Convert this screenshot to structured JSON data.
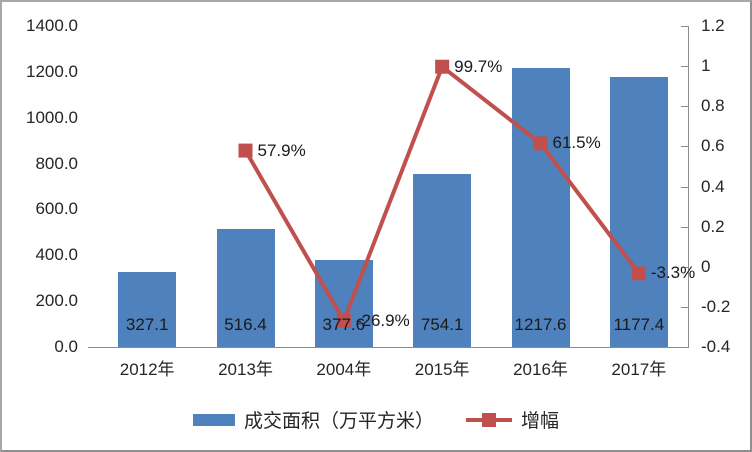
{
  "chart_data": {
    "type": "combo-bar-line",
    "categories": [
      "2012年",
      "2013年",
      "2004年",
      "2015年",
      "2016年",
      "2017年"
    ],
    "series": [
      {
        "name": "成交面积（万平方米）",
        "type": "bar",
        "axis": "left",
        "values": [
          327.1,
          516.4,
          377.6,
          754.1,
          1217.6,
          1177.4
        ],
        "data_labels": [
          "327.1",
          "516.4",
          "377.6",
          "754.1",
          "1217.6",
          "1177.4"
        ]
      },
      {
        "name": "增幅",
        "type": "line",
        "axis": "right",
        "values": [
          null,
          0.579,
          -0.269,
          0.997,
          0.615,
          -0.033
        ],
        "data_labels": [
          null,
          "57.9%",
          "-26.9%",
          "99.7%",
          "61.5%",
          "-3.3%"
        ]
      }
    ],
    "left_axis": {
      "min": 0,
      "max": 1400,
      "step": 200,
      "tick_labels_top_to_bottom": [
        "1400.0",
        "1200.0",
        "1000.0",
        "800.0",
        "600.0",
        "400.0",
        "200.0",
        "0.0"
      ]
    },
    "right_axis": {
      "min": -0.4,
      "max": 1.2,
      "step": 0.2,
      "tick_labels_top_to_bottom": [
        "1.2",
        "1",
        "0.8",
        "0.6",
        "0.4",
        "0.2",
        "0",
        "-0.2",
        "-0.4"
      ]
    },
    "grid": false,
    "legend_position": "bottom",
    "title": ""
  },
  "colors": {
    "bar": "#4f81bd",
    "line": "#c0504d",
    "marker": "#c0504d",
    "axis": "#8c8c8c",
    "text": "#262626",
    "border": "#a8a8a8"
  }
}
